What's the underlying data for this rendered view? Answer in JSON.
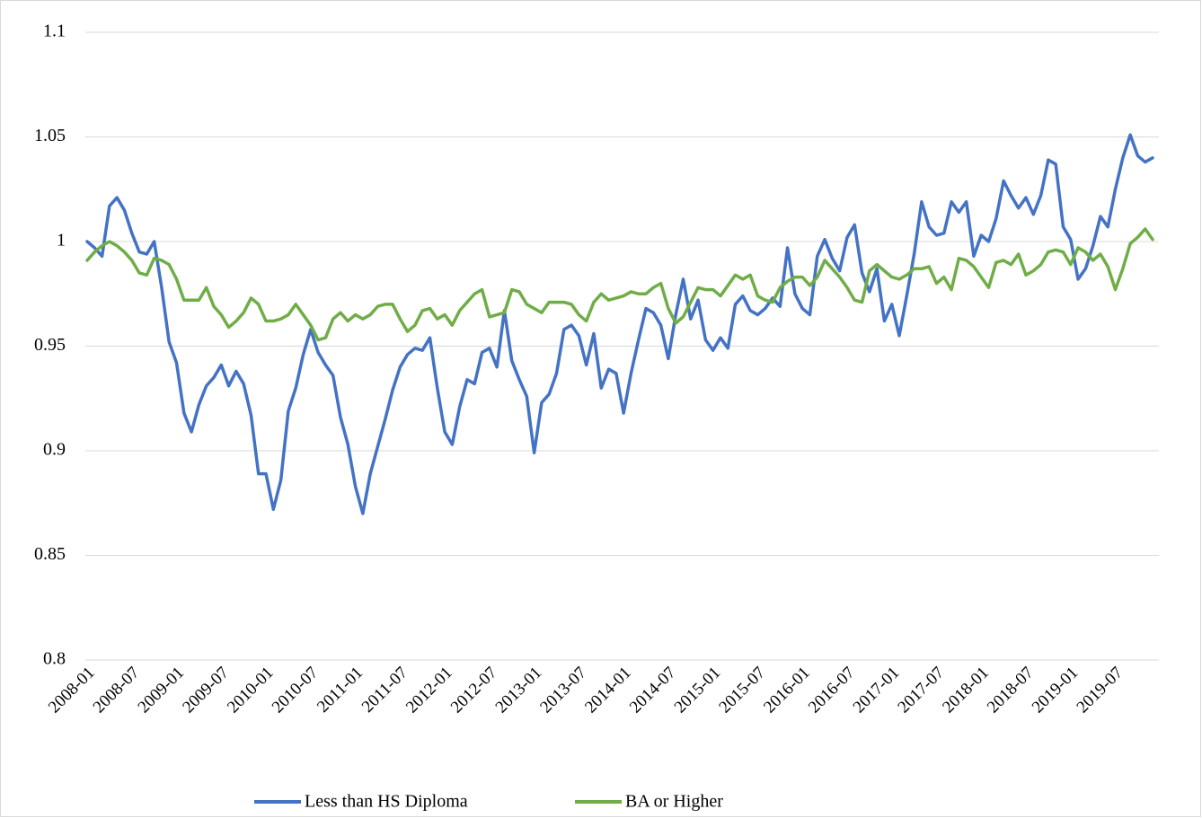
{
  "chart_data": {
    "type": "line",
    "categories": [
      "2008-01",
      null,
      null,
      null,
      null,
      null,
      "2008-07",
      null,
      null,
      null,
      null,
      null,
      "2009-01",
      null,
      null,
      null,
      null,
      null,
      "2009-07",
      null,
      null,
      null,
      null,
      null,
      "2010-01",
      null,
      null,
      null,
      null,
      null,
      "2010-07",
      null,
      null,
      null,
      null,
      null,
      "2011-01",
      null,
      null,
      null,
      null,
      null,
      "2011-07",
      null,
      null,
      null,
      null,
      null,
      "2012-01",
      null,
      null,
      null,
      null,
      null,
      "2012-07",
      null,
      null,
      null,
      null,
      null,
      "2013-01",
      null,
      null,
      null,
      null,
      null,
      "2013-07",
      null,
      null,
      null,
      null,
      null,
      "2014-01",
      null,
      null,
      null,
      null,
      null,
      "2014-07",
      null,
      null,
      null,
      null,
      null,
      "2015-01",
      null,
      null,
      null,
      null,
      null,
      "2015-07",
      null,
      null,
      null,
      null,
      null,
      "2016-01",
      null,
      null,
      null,
      null,
      null,
      "2016-07",
      null,
      null,
      null,
      null,
      null,
      "2017-01",
      null,
      null,
      null,
      null,
      null,
      "2017-07",
      null,
      null,
      null,
      null,
      null,
      "2018-01",
      null,
      null,
      null,
      null,
      null,
      "2018-07",
      null,
      null,
      null,
      null,
      null,
      "2019-01",
      null,
      null,
      null,
      null,
      null,
      "2019-07",
      null,
      null,
      null,
      null,
      null
    ],
    "series": [
      {
        "name": "Less than HS Diploma",
        "color": "#4472c4",
        "values": [
          1.0,
          0.997,
          0.993,
          1.017,
          1.021,
          1.015,
          1.004,
          0.995,
          0.994,
          1.0,
          0.978,
          0.952,
          0.942,
          0.918,
          0.909,
          0.922,
          0.931,
          0.935,
          0.941,
          0.931,
          0.938,
          0.932,
          0.917,
          0.889,
          0.889,
          0.872,
          0.886,
          0.919,
          0.93,
          0.946,
          0.958,
          0.947,
          0.941,
          0.936,
          0.916,
          0.903,
          0.883,
          0.87,
          0.889,
          0.902,
          0.915,
          0.929,
          0.94,
          0.946,
          0.949,
          0.948,
          0.954,
          0.93,
          0.909,
          0.903,
          0.921,
          0.934,
          0.932,
          0.947,
          0.949,
          0.94,
          0.967,
          0.943,
          0.934,
          0.926,
          0.899,
          0.923,
          0.927,
          0.937,
          0.958,
          0.96,
          0.955,
          0.941,
          0.956,
          0.93,
          0.939,
          0.937,
          0.918,
          0.937,
          0.953,
          0.968,
          0.966,
          0.96,
          0.944,
          0.965,
          0.982,
          0.963,
          0.972,
          0.953,
          0.948,
          0.954,
          0.949,
          0.97,
          0.974,
          0.967,
          0.965,
          0.968,
          0.973,
          0.969,
          0.997,
          0.975,
          0.968,
          0.965,
          0.993,
          1.001,
          0.992,
          0.986,
          1.002,
          1.008,
          0.985,
          0.976,
          0.987,
          0.962,
          0.97,
          0.955,
          0.974,
          0.994,
          1.019,
          1.007,
          1.003,
          1.004,
          1.019,
          1.014,
          1.019,
          0.993,
          1.003,
          1.0,
          1.011,
          1.029,
          1.022,
          1.016,
          1.021,
          1.013,
          1.022,
          1.039,
          1.037,
          1.007,
          1.001,
          0.982,
          0.987,
          0.998,
          1.012,
          1.007,
          1.025,
          1.04,
          1.051,
          1.041,
          1.038,
          1.04
        ]
      },
      {
        "name": "BA or Higher",
        "color": "#70ad47",
        "values": [
          0.991,
          0.995,
          0.998,
          1.0,
          0.998,
          0.995,
          0.991,
          0.985,
          0.984,
          0.992,
          0.991,
          0.989,
          0.982,
          0.972,
          0.972,
          0.972,
          0.978,
          0.969,
          0.965,
          0.959,
          0.962,
          0.966,
          0.973,
          0.97,
          0.962,
          0.962,
          0.963,
          0.965,
          0.97,
          0.965,
          0.96,
          0.953,
          0.954,
          0.963,
          0.966,
          0.962,
          0.965,
          0.963,
          0.965,
          0.969,
          0.97,
          0.97,
          0.963,
          0.957,
          0.96,
          0.967,
          0.968,
          0.963,
          0.965,
          0.96,
          0.967,
          0.971,
          0.975,
          0.977,
          0.964,
          0.965,
          0.966,
          0.977,
          0.976,
          0.97,
          0.968,
          0.966,
          0.971,
          0.971,
          0.971,
          0.97,
          0.965,
          0.962,
          0.971,
          0.975,
          0.972,
          0.973,
          0.974,
          0.976,
          0.975,
          0.975,
          0.978,
          0.98,
          0.968,
          0.961,
          0.964,
          0.971,
          0.978,
          0.977,
          0.977,
          0.974,
          0.979,
          0.984,
          0.982,
          0.984,
          0.974,
          0.972,
          0.971,
          0.978,
          0.981,
          0.983,
          0.983,
          0.979,
          0.983,
          0.991,
          0.987,
          0.983,
          0.978,
          0.972,
          0.971,
          0.986,
          0.989,
          0.986,
          0.983,
          0.982,
          0.984,
          0.987,
          0.987,
          0.988,
          0.98,
          0.983,
          0.977,
          0.992,
          0.991,
          0.988,
          0.983,
          0.978,
          0.99,
          0.991,
          0.989,
          0.994,
          0.984,
          0.986,
          0.989,
          0.995,
          0.996,
          0.995,
          0.989,
          0.997,
          0.995,
          0.991,
          0.994,
          0.988,
          0.977,
          0.987,
          0.999,
          1.002,
          1.006,
          1.001
        ]
      }
    ],
    "ylim": [
      0.8,
      1.1
    ],
    "yticks": [
      0.8,
      0.85,
      0.9,
      0.95,
      1,
      1.05,
      1.1
    ],
    "grid": true,
    "legend": "bottom"
  }
}
